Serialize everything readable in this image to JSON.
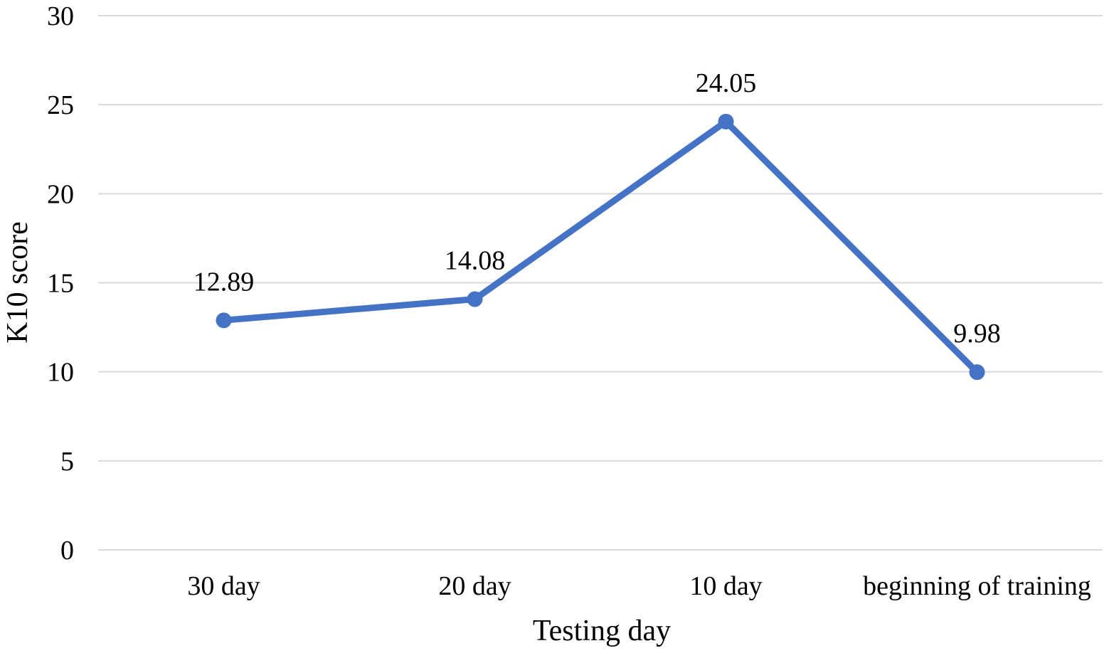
{
  "chart_data": {
    "type": "line",
    "title": "",
    "xlabel": "Testing day",
    "ylabel": "K10 score",
    "categories": [
      "30 day",
      "20 day",
      "10 day",
      "beginning of training"
    ],
    "series": [
      {
        "values": [
          12.89,
          14.08,
          24.05,
          9.98
        ],
        "data_labels": [
          "12.89",
          "14.08",
          "24.05",
          "9.98"
        ],
        "color": "#4472c4"
      }
    ],
    "ylim": [
      0,
      30
    ],
    "yticks": [
      0,
      5,
      10,
      15,
      20,
      25,
      30
    ],
    "grid": true,
    "legend": "none"
  }
}
